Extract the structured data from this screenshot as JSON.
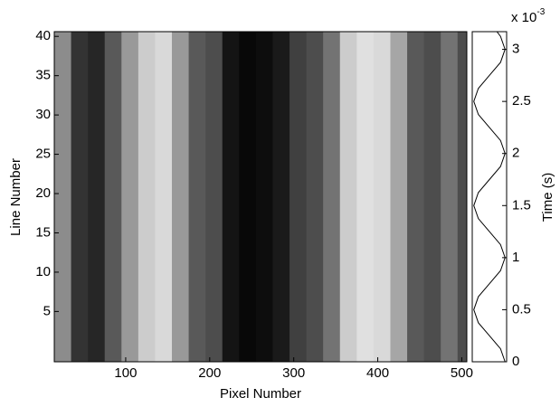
{
  "chart_data": [
    {
      "type": "heatmap",
      "xlabel": "Pixel Number",
      "ylabel": "Line Number",
      "x_edges": [
        15,
        35,
        55,
        75,
        95,
        115,
        135,
        155,
        175,
        195,
        215,
        235,
        255,
        275,
        295,
        315,
        335,
        355,
        375,
        395,
        415,
        435,
        455,
        475,
        495,
        506
      ],
      "brightness": [
        0.55,
        0.2,
        0.15,
        0.35,
        0.6,
        0.8,
        0.85,
        0.6,
        0.35,
        0.3,
        0.08,
        0.03,
        0.05,
        0.1,
        0.25,
        0.3,
        0.45,
        0.8,
        0.88,
        0.85,
        0.65,
        0.35,
        0.3,
        0.45,
        0.3
      ],
      "xlim": [
        15,
        506
      ],
      "ylim": [
        -1.4,
        40.6
      ],
      "xticks": [
        100,
        200,
        300,
        400,
        500
      ],
      "yticks": [
        5,
        10,
        15,
        20,
        25,
        30,
        35,
        40
      ]
    },
    {
      "type": "line",
      "ylabel": "Time (s)",
      "offset_text": {
        "base": "x 10",
        "exponent": "-3"
      },
      "x": [
        1,
        0.71,
        0,
        -0.71,
        -1,
        -0.71,
        0,
        0.71,
        1,
        0.71,
        0,
        -0.71,
        -1,
        -0.71,
        0,
        0.71,
        1,
        0.71,
        0,
        -0.71,
        -1,
        -0.71,
        0,
        0.71,
        1,
        0.71,
        0.48
      ],
      "y": [
        0,
        0.000125,
        0.00025,
        0.000375,
        0.0005,
        0.000625,
        0.00075,
        0.000875,
        0.001,
        0.001125,
        0.00125,
        0.001375,
        0.0015,
        0.001625,
        0.00175,
        0.001875,
        0.002,
        0.002125,
        0.00225,
        0.002375,
        0.0025,
        0.002625,
        0.00275,
        0.002875,
        0.003,
        0.003125,
        0.00317
      ],
      "color": "#000000",
      "xlim": [
        -1.1,
        1.1
      ],
      "ylim": [
        0,
        0.00317
      ],
      "yticks": [
        {
          "value": 0,
          "label": "0"
        },
        {
          "value": 0.0005,
          "label": "0.5"
        },
        {
          "value": 0.001,
          "label": "1"
        },
        {
          "value": 0.0015,
          "label": "1.5"
        },
        {
          "value": 0.002,
          "label": "2"
        },
        {
          "value": 0.0025,
          "label": "2.5"
        },
        {
          "value": 0.003,
          "label": "3"
        }
      ]
    }
  ]
}
